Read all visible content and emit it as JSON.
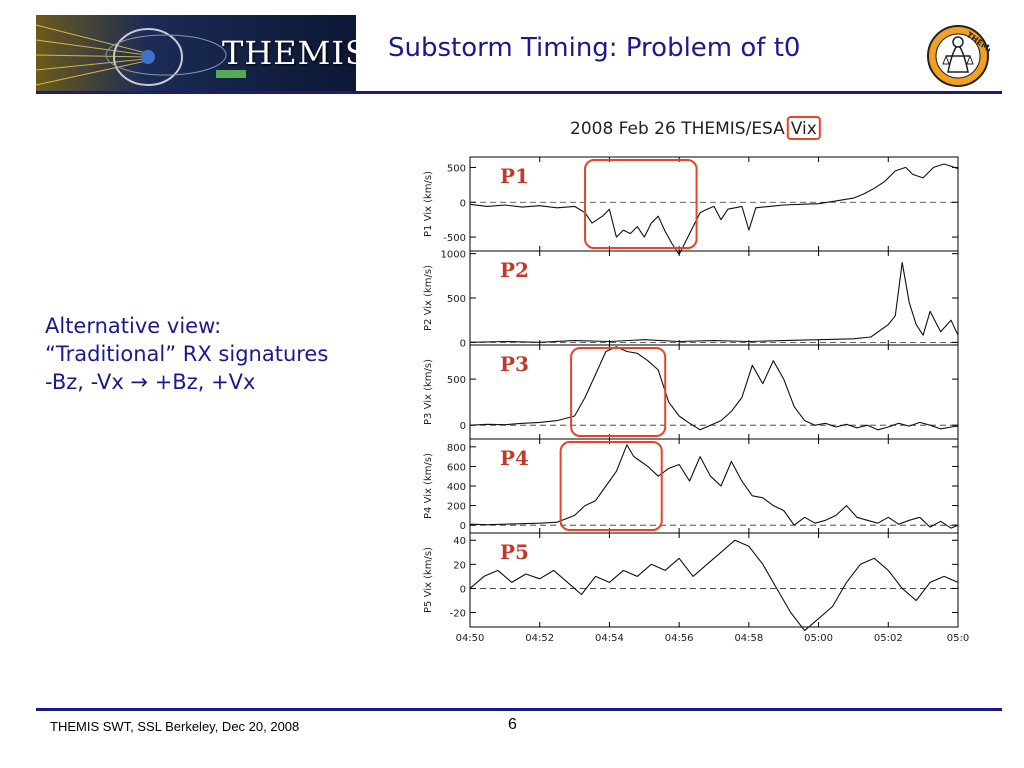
{
  "header": {
    "banner_text": "THEMIS",
    "title": "Substorm Timing: Problem of t0",
    "logo_text": "THEMIS"
  },
  "body": {
    "lines": [
      "Alternative view:",
      "“Traditional” RX signatures",
      "-Bz, -Vx → +Bz, +Vx"
    ]
  },
  "footer": {
    "text": "THEMIS SWT, SSL Berkeley, Dec 20, 2008",
    "page": "6"
  },
  "colors": {
    "title": "#1a1a8c",
    "rule": "#1a1a8c",
    "highlight_box": "#e8442a",
    "probe_label": "#c0392b"
  },
  "chart_data": {
    "type": "line",
    "title_prefix": "2008 Feb 26 THEMIS/ESA",
    "title_highlight": "Vix",
    "x_ticks": [
      "04:50",
      "04:52",
      "04:54",
      "04:56",
      "04:58",
      "05:00",
      "05:02",
      "05:0"
    ],
    "xlim": [
      0,
      14
    ],
    "x_unit": "minutes after 04:50",
    "highlight_panels": [
      "P1",
      "P3",
      "P4"
    ],
    "panels": [
      {
        "probe": "P1",
        "ylabel": "P1 Vix (km/s)",
        "ylim": [
          -700,
          650
        ],
        "yticks": [
          500,
          0,
          -500
        ],
        "highlight_x": [
          3.3,
          6.5
        ],
        "x": [
          0,
          0.5,
          1.0,
          1.5,
          2.0,
          2.5,
          3.0,
          3.3,
          3.5,
          3.8,
          4.0,
          4.2,
          4.4,
          4.6,
          4.8,
          5.0,
          5.2,
          5.4,
          5.6,
          5.8,
          6.0,
          6.2,
          6.4,
          6.6,
          6.8,
          7.0,
          7.2,
          7.4,
          7.6,
          7.8,
          8.0,
          8.2,
          8.4,
          8.6,
          8.8,
          9.0,
          9.5,
          10.0,
          10.5,
          11.0,
          11.3,
          11.6,
          11.9,
          12.2,
          12.5,
          12.7,
          13.0,
          13.3,
          13.6,
          13.9,
          14.0
        ],
        "y": [
          -30,
          -60,
          -40,
          -70,
          -50,
          -80,
          -60,
          -150,
          -300,
          -200,
          -100,
          -500,
          -400,
          -450,
          -350,
          -500,
          -300,
          -200,
          -420,
          -600,
          -750,
          -550,
          -350,
          -150,
          -100,
          -60,
          -250,
          -100,
          -80,
          -60,
          -400,
          -80,
          -70,
          -60,
          -50,
          -40,
          -30,
          -20,
          20,
          60,
          120,
          200,
          300,
          450,
          500,
          400,
          350,
          500,
          550,
          500,
          480
        ]
      },
      {
        "probe": "P2",
        "ylabel": "P2 Vix (km/s)",
        "ylim": [
          -30,
          1030
        ],
        "yticks": [
          1000,
          500,
          0
        ],
        "x": [
          0,
          1,
          2,
          3,
          4,
          5,
          6,
          7,
          8,
          9,
          10,
          11,
          11.5,
          12.0,
          12.2,
          12.4,
          12.6,
          12.8,
          13.0,
          13.2,
          13.5,
          13.8,
          14.0
        ],
        "y": [
          0,
          10,
          0,
          20,
          10,
          30,
          10,
          20,
          10,
          20,
          30,
          40,
          60,
          200,
          300,
          900,
          450,
          200,
          80,
          350,
          120,
          250,
          80
        ]
      },
      {
        "probe": "P3",
        "ylabel": "P3 Vix (km/s)",
        "ylim": [
          -150,
          870
        ],
        "yticks": [
          500,
          0
        ],
        "highlight_x": [
          2.9,
          5.6
        ],
        "x": [
          0,
          0.5,
          1.0,
          1.5,
          2.0,
          2.5,
          3.0,
          3.3,
          3.6,
          3.9,
          4.2,
          4.5,
          4.8,
          5.1,
          5.4,
          5.7,
          6.0,
          6.3,
          6.6,
          6.9,
          7.2,
          7.5,
          7.8,
          8.1,
          8.4,
          8.7,
          9.0,
          9.3,
          9.6,
          9.9,
          10.2,
          10.5,
          10.8,
          11.1,
          11.4,
          11.7,
          12.0,
          12.3,
          12.6,
          12.9,
          13.2,
          13.5,
          13.8,
          14.0
        ],
        "y": [
          0,
          10,
          5,
          20,
          30,
          50,
          100,
          300,
          550,
          800,
          850,
          800,
          780,
          700,
          600,
          250,
          100,
          20,
          -50,
          0,
          50,
          150,
          300,
          650,
          450,
          700,
          500,
          200,
          50,
          0,
          20,
          -20,
          10,
          -30,
          0,
          -50,
          -20,
          20,
          -10,
          30,
          0,
          -40,
          -20,
          -10
        ]
      },
      {
        "probe": "P4",
        "ylabel": "P4 Vix (km/s)",
        "ylim": [
          -80,
          880
        ],
        "yticks": [
          800,
          600,
          400,
          200,
          0
        ],
        "highlight_x": [
          2.6,
          5.5
        ],
        "x": [
          0,
          0.5,
          1.0,
          1.5,
          2.0,
          2.5,
          3.0,
          3.3,
          3.6,
          3.9,
          4.2,
          4.5,
          4.7,
          4.9,
          5.1,
          5.4,
          5.7,
          6.0,
          6.3,
          6.6,
          6.9,
          7.2,
          7.5,
          7.8,
          8.1,
          8.4,
          8.7,
          9.0,
          9.3,
          9.6,
          9.9,
          10.2,
          10.5,
          10.8,
          11.1,
          11.4,
          11.7,
          12.0,
          12.3,
          12.6,
          12.9,
          13.2,
          13.5,
          13.8,
          14.0
        ],
        "y": [
          10,
          5,
          10,
          15,
          20,
          30,
          100,
          200,
          250,
          400,
          550,
          820,
          700,
          650,
          600,
          500,
          580,
          620,
          450,
          700,
          500,
          400,
          650,
          450,
          300,
          280,
          200,
          150,
          0,
          80,
          20,
          50,
          100,
          200,
          80,
          50,
          20,
          80,
          10,
          50,
          80,
          -20,
          40,
          -30,
          0
        ]
      },
      {
        "probe": "P5",
        "ylabel": "P5 Vix (km/s)",
        "ylim": [
          -32,
          46
        ],
        "yticks": [
          40,
          20,
          0,
          -20
        ],
        "x": [
          0,
          0.4,
          0.8,
          1.2,
          1.6,
          2.0,
          2.4,
          2.8,
          3.2,
          3.6,
          4.0,
          4.4,
          4.8,
          5.2,
          5.6,
          6.0,
          6.4,
          6.8,
          7.2,
          7.6,
          8.0,
          8.4,
          8.8,
          9.2,
          9.6,
          10.0,
          10.4,
          10.8,
          11.2,
          11.6,
          12.0,
          12.4,
          12.8,
          13.2,
          13.6,
          14.0
        ],
        "y": [
          0,
          10,
          15,
          5,
          12,
          8,
          15,
          5,
          -5,
          10,
          5,
          15,
          10,
          20,
          15,
          25,
          10,
          20,
          30,
          40,
          35,
          20,
          0,
          -20,
          -35,
          -25,
          -15,
          5,
          20,
          25,
          15,
          0,
          -10,
          5,
          10,
          5
        ]
      }
    ]
  }
}
